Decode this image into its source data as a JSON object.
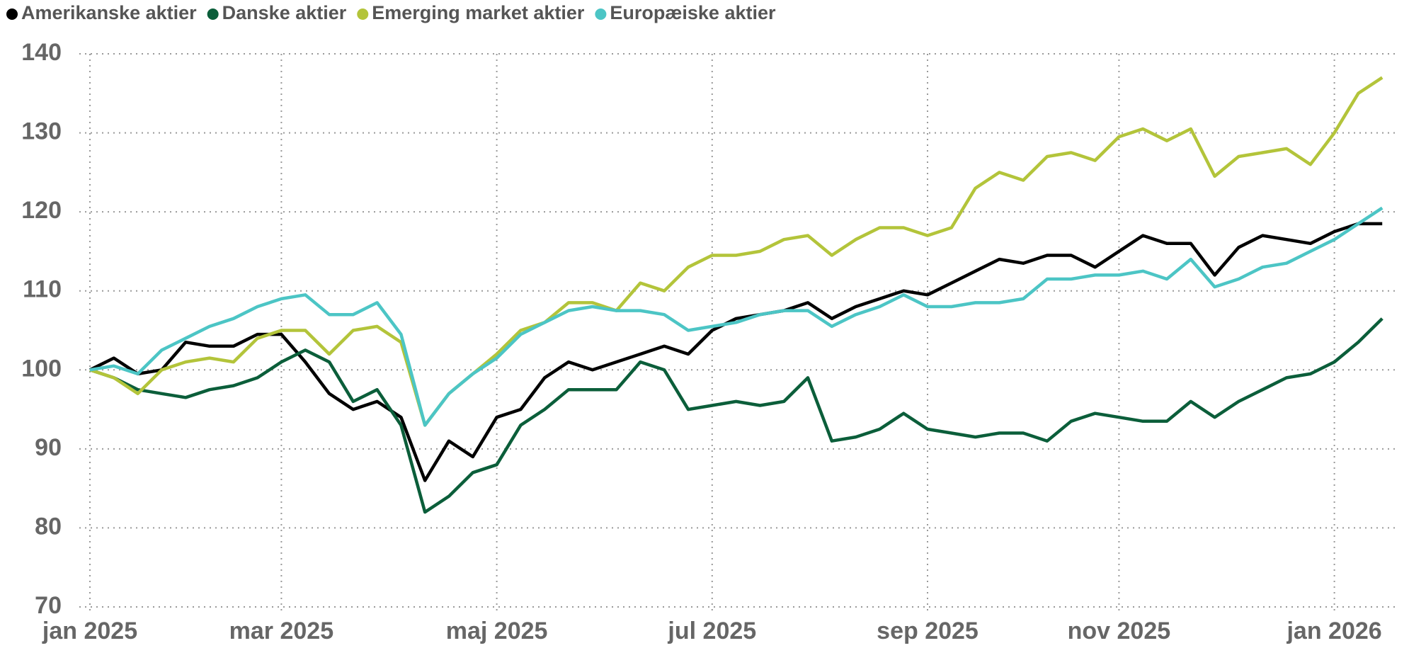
{
  "chart_data": {
    "type": "line",
    "categories": [
      "jan 2025",
      null,
      null,
      null,
      null,
      null,
      null,
      null,
      "mar 2025",
      null,
      null,
      null,
      null,
      null,
      null,
      null,
      null,
      "maj 2025",
      null,
      null,
      null,
      null,
      null,
      null,
      null,
      null,
      "jul 2025",
      null,
      null,
      null,
      null,
      null,
      null,
      null,
      null,
      "sep 2025",
      null,
      null,
      null,
      null,
      null,
      null,
      null,
      "nov 2025",
      null,
      null,
      null,
      null,
      null,
      null,
      null,
      null,
      "jan 2026",
      null,
      null
    ],
    "series": [
      {
        "name": "Amerikanske aktier",
        "color": "#000000",
        "values": [
          100,
          101.5,
          99.5,
          100,
          103.5,
          103,
          103,
          104.5,
          104.5,
          101,
          97,
          95,
          96,
          94,
          86,
          91,
          89,
          94,
          95,
          99,
          101,
          100,
          101,
          102,
          103,
          102,
          105,
          106.5,
          107,
          107.5,
          108.5,
          106.5,
          108,
          109,
          110,
          109.5,
          111,
          112.5,
          114,
          113.5,
          114.5,
          114.5,
          113,
          115,
          117,
          116,
          116,
          112,
          115.5,
          117,
          116.5,
          116,
          117.5,
          118.5,
          118.5
        ]
      },
      {
        "name": "Danske aktier",
        "color": "#0b5e3a",
        "values": [
          100,
          99,
          97.5,
          97,
          96.5,
          97.5,
          98,
          99,
          101,
          102.5,
          101,
          96,
          97.5,
          93,
          82,
          84,
          87,
          88,
          93,
          95,
          97.5,
          97.5,
          97.5,
          101,
          100,
          95,
          95.5,
          96,
          95.5,
          96,
          99,
          91,
          91.5,
          92.5,
          94.5,
          92.5,
          92,
          91.5,
          92,
          92,
          91,
          93.5,
          94.5,
          94,
          93.5,
          93.5,
          96,
          94,
          96,
          97.5,
          99,
          99.5,
          101,
          103.5,
          106.5
        ]
      },
      {
        "name": "Emerging market aktier",
        "color": "#b3c43a",
        "values": [
          100,
          99,
          97,
          100,
          101,
          101.5,
          101,
          104,
          105,
          105,
          102,
          105,
          105.5,
          103.5,
          93,
          97,
          99.5,
          102,
          105,
          106,
          108.5,
          108.5,
          107.5,
          111,
          110,
          113,
          114.5,
          114.5,
          115,
          116.5,
          117,
          114.5,
          116.5,
          118,
          118,
          117,
          118,
          123,
          125,
          124,
          127,
          127.5,
          126.5,
          129.5,
          130.5,
          129,
          130.5,
          124.5,
          127,
          127.5,
          128,
          126,
          130,
          135,
          137
        ]
      },
      {
        "name": "Europæiske aktier",
        "color": "#4cc5c5",
        "values": [
          100,
          100.5,
          99.5,
          102.5,
          104,
          105.5,
          106.5,
          108,
          109,
          109.5,
          107,
          107,
          108.5,
          104.5,
          93,
          97,
          99.5,
          101.5,
          104.5,
          106,
          107.5,
          108,
          107.5,
          107.5,
          107,
          105,
          105.5,
          106,
          107,
          107.5,
          107.5,
          105.5,
          107,
          108,
          109.5,
          108,
          108,
          108.5,
          108.5,
          109,
          111.5,
          111.5,
          112,
          112,
          112.5,
          111.5,
          114,
          110.5,
          111.5,
          113,
          113.5,
          115,
          116.5,
          118.5,
          120.5
        ]
      }
    ],
    "ylim": [
      70,
      140
    ],
    "yticks": [
      70,
      80,
      90,
      100,
      110,
      120,
      130,
      140
    ],
    "grid": true,
    "legend": "top-left"
  }
}
